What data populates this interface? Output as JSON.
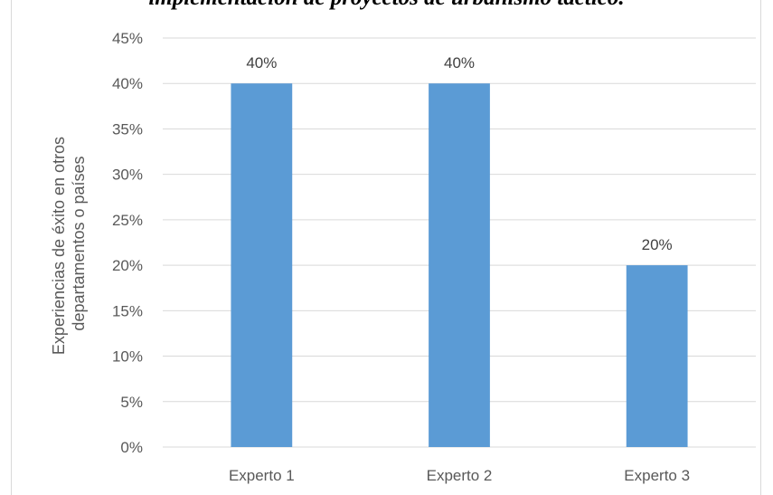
{
  "header": {
    "title": "implementación de proyectos de urbanismo táctico."
  },
  "chart_data": {
    "type": "bar",
    "categories": [
      "Experto 1",
      "Experto 2",
      "Experto 3"
    ],
    "values": [
      40,
      40,
      20
    ],
    "data_labels": [
      "40%",
      "40%",
      "20%"
    ],
    "ylabel": "Experiencias de éxito en otros departamentos o países",
    "ylabel_lines": [
      "Experiencias de éxito en otros",
      "departamentos o países"
    ],
    "xlabel": "",
    "ylim": [
      0,
      45
    ],
    "y_ticks": [
      "0%",
      "5%",
      "10%",
      "15%",
      "20%",
      "25%",
      "30%",
      "35%",
      "40%",
      "45%"
    ],
    "grid": true,
    "legend": "none",
    "bar_color": "#5b9bd5",
    "grid_color": "#d9d9d9"
  }
}
